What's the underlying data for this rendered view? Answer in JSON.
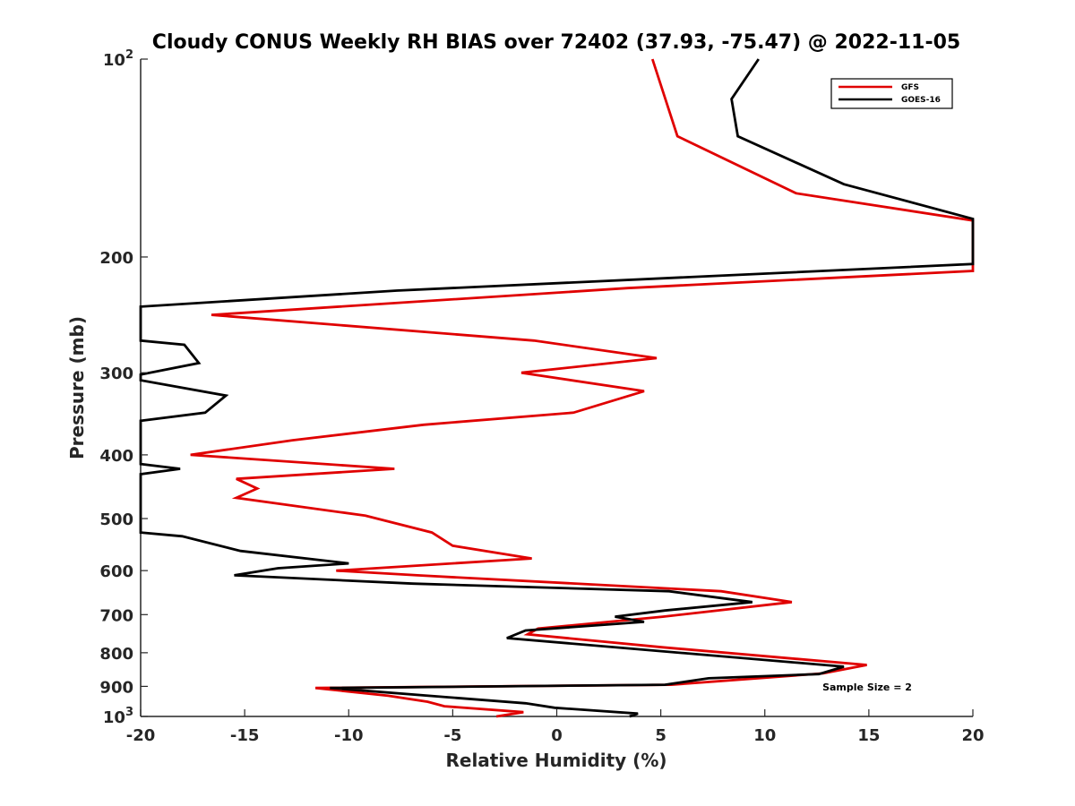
{
  "chart_data": {
    "type": "line",
    "title": "Cloudy CONUS Weekly RH BIAS over 72402 (37.93, -75.47) @ 2022-11-05",
    "xlabel": "Relative Humidity (%)",
    "ylabel": "Pressure (mb)",
    "xlim": [
      -20,
      20
    ],
    "ylim": [
      100,
      1000
    ],
    "yscale": "log",
    "y_reversed": true,
    "xticks": [
      -20,
      -15,
      -10,
      -5,
      0,
      5,
      10,
      15,
      20
    ],
    "yticks": [
      {
        "value": 100,
        "base": "10",
        "exp": "2"
      },
      {
        "value": 200,
        "label": "200"
      },
      {
        "value": 300,
        "label": "300"
      },
      {
        "value": 400,
        "label": "400"
      },
      {
        "value": 500,
        "label": "500"
      },
      {
        "value": 600,
        "label": "600"
      },
      {
        "value": 700,
        "label": "700"
      },
      {
        "value": 800,
        "label": "800"
      },
      {
        "value": 900,
        "label": "900"
      },
      {
        "value": 1000,
        "base": "10",
        "exp": "3"
      }
    ],
    "grid": false,
    "legend_position": "top-right",
    "annotation": "Sample Size = 2",
    "series": [
      {
        "name": "GFS",
        "color": "#e00000",
        "points": [
          [
            4.6,
            100
          ],
          [
            5.8,
            131
          ],
          [
            11.5,
            160
          ],
          [
            20,
            176
          ],
          [
            20,
            210
          ],
          [
            3.4,
            223
          ],
          [
            -16.6,
            245
          ],
          [
            -1.1,
            268
          ],
          [
            4.8,
            285
          ],
          [
            -1.7,
            300
          ],
          [
            4.2,
            320
          ],
          [
            0.8,
            345
          ],
          [
            -6.4,
            360
          ],
          [
            -12.7,
            380
          ],
          [
            -17.6,
            400
          ],
          [
            -7.8,
            420
          ],
          [
            -15.4,
            435
          ],
          [
            -14.4,
            450
          ],
          [
            -15.4,
            465
          ],
          [
            -9.2,
            495
          ],
          [
            -6.0,
            525
          ],
          [
            -5.0,
            550
          ],
          [
            -1.2,
            575
          ],
          [
            -10.6,
            600
          ],
          [
            -6.7,
            610
          ],
          [
            7.9,
            645
          ],
          [
            11.3,
            670
          ],
          [
            5.1,
            705
          ],
          [
            -0.9,
            735
          ],
          [
            -1.4,
            750
          ],
          [
            5.1,
            785
          ],
          [
            14.9,
            835
          ],
          [
            12.8,
            860
          ],
          [
            5.5,
            895
          ],
          [
            -11.6,
            905
          ],
          [
            -8.1,
            930
          ],
          [
            -6.2,
            950
          ],
          [
            -5.4,
            965
          ],
          [
            -1.6,
            985
          ],
          [
            -2.9,
            1000
          ]
        ]
      },
      {
        "name": "GOES-16",
        "color": "#000000",
        "points": [
          [
            9.7,
            100
          ],
          [
            8.4,
            115
          ],
          [
            8.7,
            131
          ],
          [
            13.8,
            155
          ],
          [
            20,
            175
          ],
          [
            20,
            205
          ],
          [
            -7.7,
            225
          ],
          [
            -20,
            238
          ],
          [
            -20,
            268
          ],
          [
            -17.9,
            272
          ],
          [
            -17.2,
            290
          ],
          [
            -20,
            302
          ],
          [
            -20,
            308
          ],
          [
            -15.9,
            325
          ],
          [
            -16.9,
            345
          ],
          [
            -20,
            355
          ],
          [
            -20,
            413
          ],
          [
            -18.1,
            420
          ],
          [
            -20,
            428
          ],
          [
            -20,
            525
          ],
          [
            -18.0,
            532
          ],
          [
            -15.2,
            560
          ],
          [
            -10.0,
            585
          ],
          [
            -13.4,
            595
          ],
          [
            -15.5,
            610
          ],
          [
            -6.9,
            628
          ],
          [
            5.4,
            645
          ],
          [
            9.4,
            670
          ],
          [
            5.2,
            690
          ],
          [
            2.8,
            705
          ],
          [
            4.2,
            718
          ],
          [
            -1.5,
            740
          ],
          [
            -2.4,
            760
          ],
          [
            13.8,
            840
          ],
          [
            12.6,
            862
          ],
          [
            7.3,
            875
          ],
          [
            5.2,
            895
          ],
          [
            -10.9,
            905
          ],
          [
            -5.2,
            935
          ],
          [
            -1.5,
            955
          ],
          [
            -0.1,
            970
          ],
          [
            3.9,
            990
          ],
          [
            3.5,
            1000
          ]
        ]
      }
    ]
  }
}
